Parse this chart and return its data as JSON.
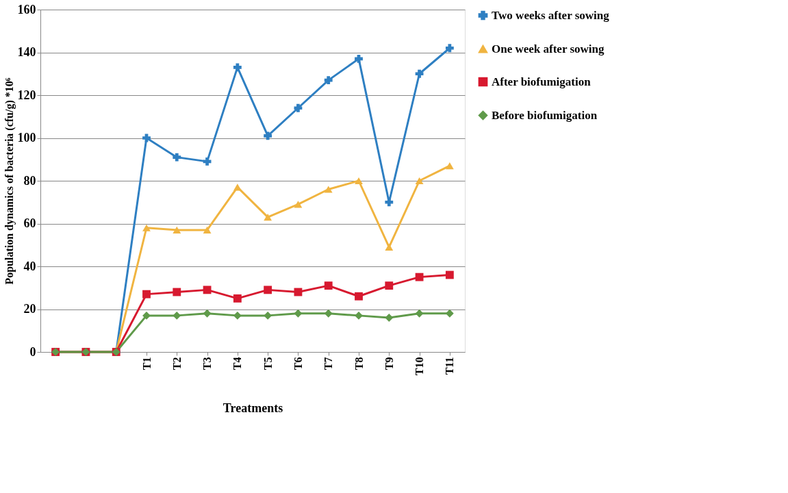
{
  "chart_data": {
    "type": "line",
    "xlabel": "Treatments",
    "ylabel": "Population dynamics of bacteria (cfu/g) *10⁶",
    "categories": [
      null,
      null,
      null,
      "T1",
      "T2",
      "T3",
      "T4",
      "T5",
      "T6",
      "T7",
      "T8",
      "T9",
      "T10",
      "T11"
    ],
    "series": [
      {
        "name": "Two weeks after sowing",
        "color": "#2e7fc2",
        "marker": "cross",
        "values": [
          0,
          0,
          0,
          100,
          91,
          89,
          133,
          101,
          114,
          127,
          137,
          70,
          130,
          142
        ]
      },
      {
        "name": "One week after sowing",
        "color": "#f0b440",
        "marker": "triangle",
        "values": [
          0,
          0,
          0,
          58,
          57,
          57,
          77,
          63,
          69,
          76,
          80,
          49,
          80,
          87
        ]
      },
      {
        "name": "After biofumigation",
        "color": "#d7192f",
        "marker": "square",
        "values": [
          0,
          0,
          0,
          27,
          28,
          29,
          25,
          29,
          28,
          31,
          26,
          31,
          35,
          36
        ]
      },
      {
        "name": "Before biofumigation",
        "color": "#5f9a4a",
        "marker": "diamond",
        "values": [
          0,
          0,
          0,
          17,
          17,
          18,
          17,
          17,
          18,
          18,
          17,
          16,
          18,
          18
        ]
      }
    ],
    "ylim": [
      0,
      160
    ],
    "yticks": [
      0,
      20,
      40,
      60,
      80,
      100,
      120,
      140,
      160
    ],
    "grid": "y",
    "legend": "right",
    "line_style": "solid"
  }
}
